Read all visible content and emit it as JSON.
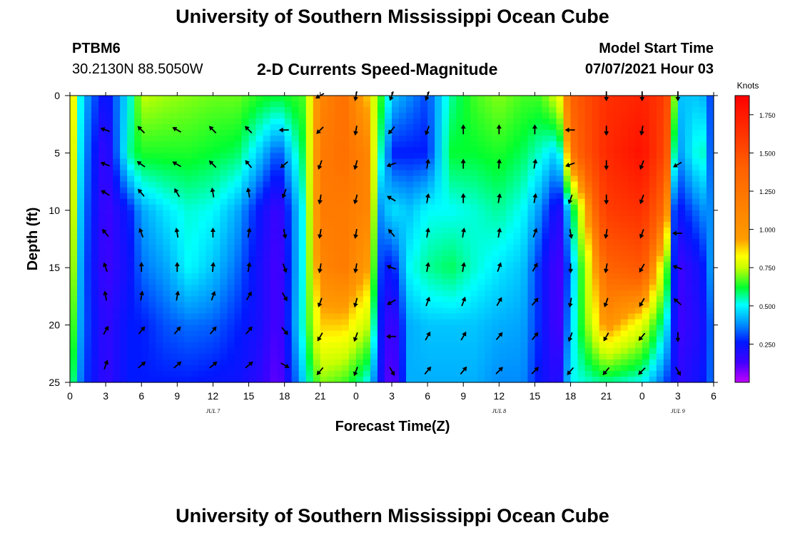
{
  "header": {
    "title": "University of Southern Mississippi Ocean Cube",
    "station": "PTBM6",
    "coords": "30.2130N  88.5050W",
    "subtitle": "2-D Currents Speed-Magnitude",
    "model_start_label": "Model Start Time",
    "model_start_value": "07/07/2021 Hour 03"
  },
  "footer": {
    "title": "University of Southern Mississippi Ocean Cube"
  },
  "chart_data": {
    "type": "heatmap",
    "title": "2-D Currents Speed-Magnitude",
    "xlabel": "Forecast Time(Z)",
    "ylabel": "Depth (ft)",
    "x_ticks": [
      "0",
      "3",
      "6",
      "9",
      "12",
      "15",
      "18",
      "21",
      "0",
      "3",
      "6",
      "9",
      "12",
      "15",
      "18",
      "21",
      "0",
      "3",
      "6"
    ],
    "x_range_hours": [
      0,
      54
    ],
    "y_ticks": [
      "0",
      "5",
      "10",
      "15",
      "20",
      "25"
    ],
    "y_range_ft": [
      0,
      25
    ],
    "date_labels": [
      {
        "text": "JUL 7",
        "hour": 12
      },
      {
        "text": "JUL 8",
        "hour": 36
      },
      {
        "text": "JUL 9",
        "hour": 51
      }
    ],
    "colorbar": {
      "label": "Knots",
      "range": [
        0.0,
        1.875
      ],
      "ticks": [
        "0.250",
        "0.500",
        "0.750",
        "1.000",
        "1.250",
        "1.500",
        "1.750"
      ],
      "tick_values": [
        0.25,
        0.5,
        0.75,
        1.0,
        1.25,
        1.5,
        1.75
      ]
    },
    "speed_profiles": [
      {
        "hour": 0,
        "speeds": [
          0.9,
          0.85,
          0.8,
          0.75,
          0.65,
          0.55
        ]
      },
      {
        "hour": 1,
        "speeds": [
          0.35,
          0.33,
          0.3,
          0.28,
          0.28,
          0.26
        ]
      },
      {
        "hour": 3,
        "speeds": [
          0.18,
          0.12,
          0.12,
          0.12,
          0.14,
          0.14
        ]
      },
      {
        "hour": 5,
        "speeds": [
          0.4,
          0.45,
          0.22,
          0.2,
          0.22,
          0.22
        ]
      },
      {
        "hour": 6,
        "speeds": [
          0.65,
          0.52,
          0.32,
          0.28,
          0.22,
          0.22
        ]
      },
      {
        "hour": 8,
        "speeds": [
          0.62,
          0.52,
          0.38,
          0.32,
          0.26,
          0.22
        ]
      },
      {
        "hour": 10,
        "speeds": [
          0.6,
          0.52,
          0.42,
          0.4,
          0.28,
          0.22
        ]
      },
      {
        "hour": 12,
        "speeds": [
          0.58,
          0.5,
          0.4,
          0.35,
          0.27,
          0.21
        ]
      },
      {
        "hour": 14,
        "speeds": [
          0.58,
          0.48,
          0.33,
          0.28,
          0.23,
          0.2
        ]
      },
      {
        "hour": 16,
        "speeds": [
          0.52,
          0.35,
          0.2,
          0.18,
          0.18,
          0.15
        ]
      },
      {
        "hour": 17.5,
        "speeds": [
          0.5,
          0.25,
          0.12,
          0.1,
          0.1,
          0.08
        ]
      },
      {
        "hour": 19.5,
        "speeds": [
          0.55,
          0.48,
          0.4,
          0.4,
          0.42,
          0.35
        ]
      },
      {
        "hour": 21,
        "speeds": [
          0.95,
          1.0,
          1.0,
          0.95,
          0.8,
          0.6
        ]
      },
      {
        "hour": 23,
        "speeds": [
          1.05,
          1.05,
          1.0,
          1.0,
          0.8,
          0.55
        ]
      },
      {
        "hour": 25,
        "speeds": [
          0.8,
          0.95,
          0.95,
          0.85,
          0.65,
          0.4
        ]
      },
      {
        "hour": 26,
        "speeds": [
          0.55,
          0.45,
          0.3,
          0.25,
          0.22,
          0.2
        ]
      },
      {
        "hour": 27,
        "speeds": [
          0.35,
          0.22,
          0.38,
          0.2,
          0.1,
          0.06
        ]
      },
      {
        "hour": 28.5,
        "speeds": [
          0.3,
          0.22,
          0.35,
          0.4,
          0.33,
          0.33
        ]
      },
      {
        "hour": 30,
        "speeds": [
          0.25,
          0.22,
          0.4,
          0.45,
          0.35,
          0.33
        ]
      },
      {
        "hour": 32,
        "speeds": [
          0.45,
          0.5,
          0.4,
          0.48,
          0.35,
          0.33
        ]
      },
      {
        "hour": 34,
        "speeds": [
          0.55,
          0.5,
          0.42,
          0.42,
          0.35,
          0.33
        ]
      },
      {
        "hour": 36,
        "speeds": [
          0.6,
          0.52,
          0.45,
          0.38,
          0.33,
          0.3
        ]
      },
      {
        "hour": 38,
        "speeds": [
          0.55,
          0.48,
          0.4,
          0.35,
          0.32,
          0.3
        ]
      },
      {
        "hour": 39.5,
        "speeds": [
          0.55,
          0.42,
          0.3,
          0.22,
          0.22,
          0.2
        ]
      },
      {
        "hour": 41,
        "speeds": [
          0.7,
          0.35,
          0.15,
          0.1,
          0.1,
          0.15
        ]
      },
      {
        "hour": 42,
        "speeds": [
          1.1,
          1.0,
          0.4,
          0.3,
          0.35,
          0.4
        ]
      },
      {
        "hour": 45,
        "speeds": [
          1.5,
          1.55,
          1.4,
          1.1,
          0.9,
          0.45
        ]
      },
      {
        "hour": 48,
        "speeds": [
          1.6,
          1.75,
          1.5,
          1.2,
          0.7,
          0.4
        ]
      },
      {
        "hour": 50,
        "speeds": [
          1.4,
          1.3,
          1.0,
          0.6,
          0.4,
          0.25
        ]
      },
      {
        "hour": 50.7,
        "speeds": [
          0.6,
          0.45,
          0.25,
          0.22,
          0.2,
          0.2
        ]
      },
      {
        "hour": 51,
        "speeds": [
          0.35,
          0.3,
          0.2,
          0.12,
          0.12,
          0.15
        ]
      },
      {
        "hour": 53,
        "speeds": [
          0.35,
          0.45,
          0.3,
          0.2,
          0.18,
          0.2
        ]
      },
      {
        "hour": 54,
        "speeds": [
          0.22,
          0.2,
          0.3,
          0.35,
          0.3,
          0.3
        ]
      }
    ],
    "current_vectors": [
      {
        "hour": 3,
        "depths": [
          3,
          6,
          8.5,
          12,
          15,
          17.5,
          20.5,
          23.5
        ],
        "dirs_deg": [
          290,
          290,
          300,
          320,
          340,
          350,
          30,
          20
        ]
      },
      {
        "hour": 6,
        "depths": [
          3,
          6,
          8.5,
          12,
          15,
          17.5,
          20.5,
          23.5
        ],
        "dirs_deg": [
          315,
          305,
          320,
          340,
          0,
          10,
          40,
          50
        ]
      },
      {
        "hour": 9,
        "depths": [
          3,
          6,
          8.5,
          12,
          15,
          17.5,
          20.5,
          23.5
        ],
        "dirs_deg": [
          300,
          300,
          330,
          350,
          0,
          10,
          40,
          50
        ]
      },
      {
        "hour": 12,
        "depths": [
          3,
          6,
          8.5,
          12,
          15,
          17.5,
          20.5,
          23.5
        ],
        "dirs_deg": [
          315,
          315,
          350,
          0,
          5,
          20,
          40,
          50
        ]
      },
      {
        "hour": 15,
        "depths": [
          3,
          6,
          8.5,
          12,
          15,
          17.5,
          20.5,
          23.5
        ],
        "dirs_deg": [
          315,
          320,
          350,
          10,
          10,
          30,
          40,
          50
        ]
      },
      {
        "hour": 18,
        "depths": [
          3,
          6,
          8.5,
          12,
          15,
          17.5,
          20.5,
          23.5
        ],
        "dirs_deg": [
          270,
          230,
          200,
          170,
          160,
          150,
          140,
          120
        ]
      },
      {
        "hour": 21,
        "depths": [
          0,
          3,
          6,
          9,
          12,
          15,
          18,
          21,
          24
        ],
        "dirs_deg": [
          240,
          225,
          200,
          190,
          190,
          190,
          200,
          210,
          220
        ]
      },
      {
        "hour": 24,
        "depths": [
          0,
          3,
          6,
          9,
          12,
          15,
          18,
          21,
          24
        ],
        "dirs_deg": [
          190,
          190,
          195,
          195,
          190,
          190,
          195,
          200,
          200
        ]
      },
      {
        "hour": 27,
        "depths": [
          0,
          3,
          6,
          9,
          12,
          15,
          18,
          21,
          24
        ],
        "dirs_deg": [
          200,
          220,
          250,
          300,
          320,
          290,
          240,
          270,
          150
        ]
      },
      {
        "hour": 30,
        "depths": [
          0,
          3,
          6,
          9,
          12,
          15,
          18,
          21,
          24
        ],
        "dirs_deg": [
          200,
          200,
          10,
          10,
          10,
          10,
          20,
          30,
          40
        ]
      },
      {
        "hour": 33,
        "depths": [
          3,
          6,
          9,
          12,
          15,
          18,
          21,
          24
        ],
        "dirs_deg": [
          0,
          0,
          0,
          10,
          10,
          20,
          30,
          40
        ]
      },
      {
        "hour": 36,
        "depths": [
          3,
          6,
          9,
          12,
          15,
          18,
          21,
          24
        ],
        "dirs_deg": [
          0,
          5,
          10,
          10,
          20,
          30,
          40,
          45
        ]
      },
      {
        "hour": 39,
        "depths": [
          3,
          6,
          9,
          12,
          15,
          18,
          21,
          24
        ],
        "dirs_deg": [
          0,
          10,
          10,
          20,
          30,
          40,
          40,
          45
        ]
      },
      {
        "hour": 42,
        "depths": [
          3,
          6,
          9,
          12,
          15,
          18,
          21,
          24
        ],
        "dirs_deg": [
          270,
          250,
          200,
          170,
          180,
          190,
          200,
          220
        ]
      },
      {
        "hour": 45,
        "depths": [
          0,
          3,
          6,
          9,
          12,
          15,
          18,
          21,
          24
        ],
        "dirs_deg": [
          180,
          180,
          180,
          180,
          190,
          190,
          200,
          210,
          220
        ]
      },
      {
        "hour": 48,
        "depths": [
          0,
          3,
          6,
          9,
          12,
          15,
          18,
          21,
          24
        ],
        "dirs_deg": [
          180,
          190,
          200,
          200,
          200,
          210,
          210,
          220,
          225
        ]
      },
      {
        "hour": 51,
        "depths": [
          0,
          6,
          12,
          15,
          18,
          21,
          24
        ],
        "dirs_deg": [
          180,
          240,
          270,
          290,
          310,
          180,
          150
        ]
      }
    ]
  }
}
